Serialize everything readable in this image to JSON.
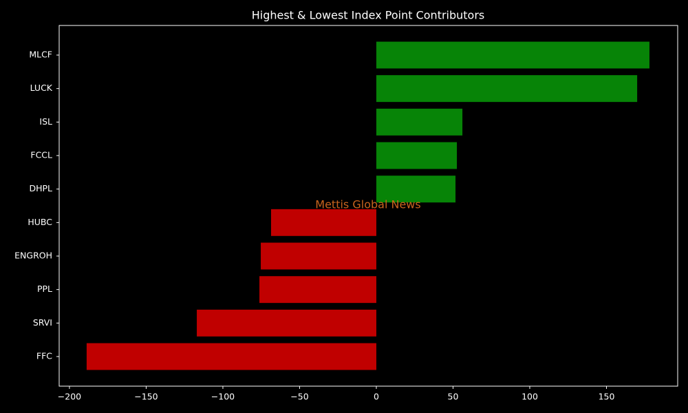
{
  "chart_data": {
    "type": "barh",
    "title": "Highest & Lowest Index Point Contributors",
    "watermark": "Mettis Global News",
    "categories": [
      "MLCF",
      "LUCK",
      "ISL",
      "FCCL",
      "DHPL",
      "HUBC",
      "ENGROH",
      "PPL",
      "SRVI",
      "FFC"
    ],
    "values": [
      178.0,
      170.0,
      56.1,
      52.5,
      51.6,
      -68.6,
      -75.3,
      -76.2,
      -117.0,
      -188.8
    ],
    "colors": [
      "#078407",
      "#078407",
      "#078407",
      "#078407",
      "#078407",
      "#c00000",
      "#c00000",
      "#c00000",
      "#c00000",
      "#c00000"
    ],
    "xlim": [
      -206.7,
      196.4
    ],
    "xticks": [
      {
        "value": -200,
        "label": "−200"
      },
      {
        "value": -150,
        "label": "−150"
      },
      {
        "value": -100,
        "label": "−100"
      },
      {
        "value": -50,
        "label": "−50"
      },
      0,
      50,
      100,
      150
    ]
  }
}
